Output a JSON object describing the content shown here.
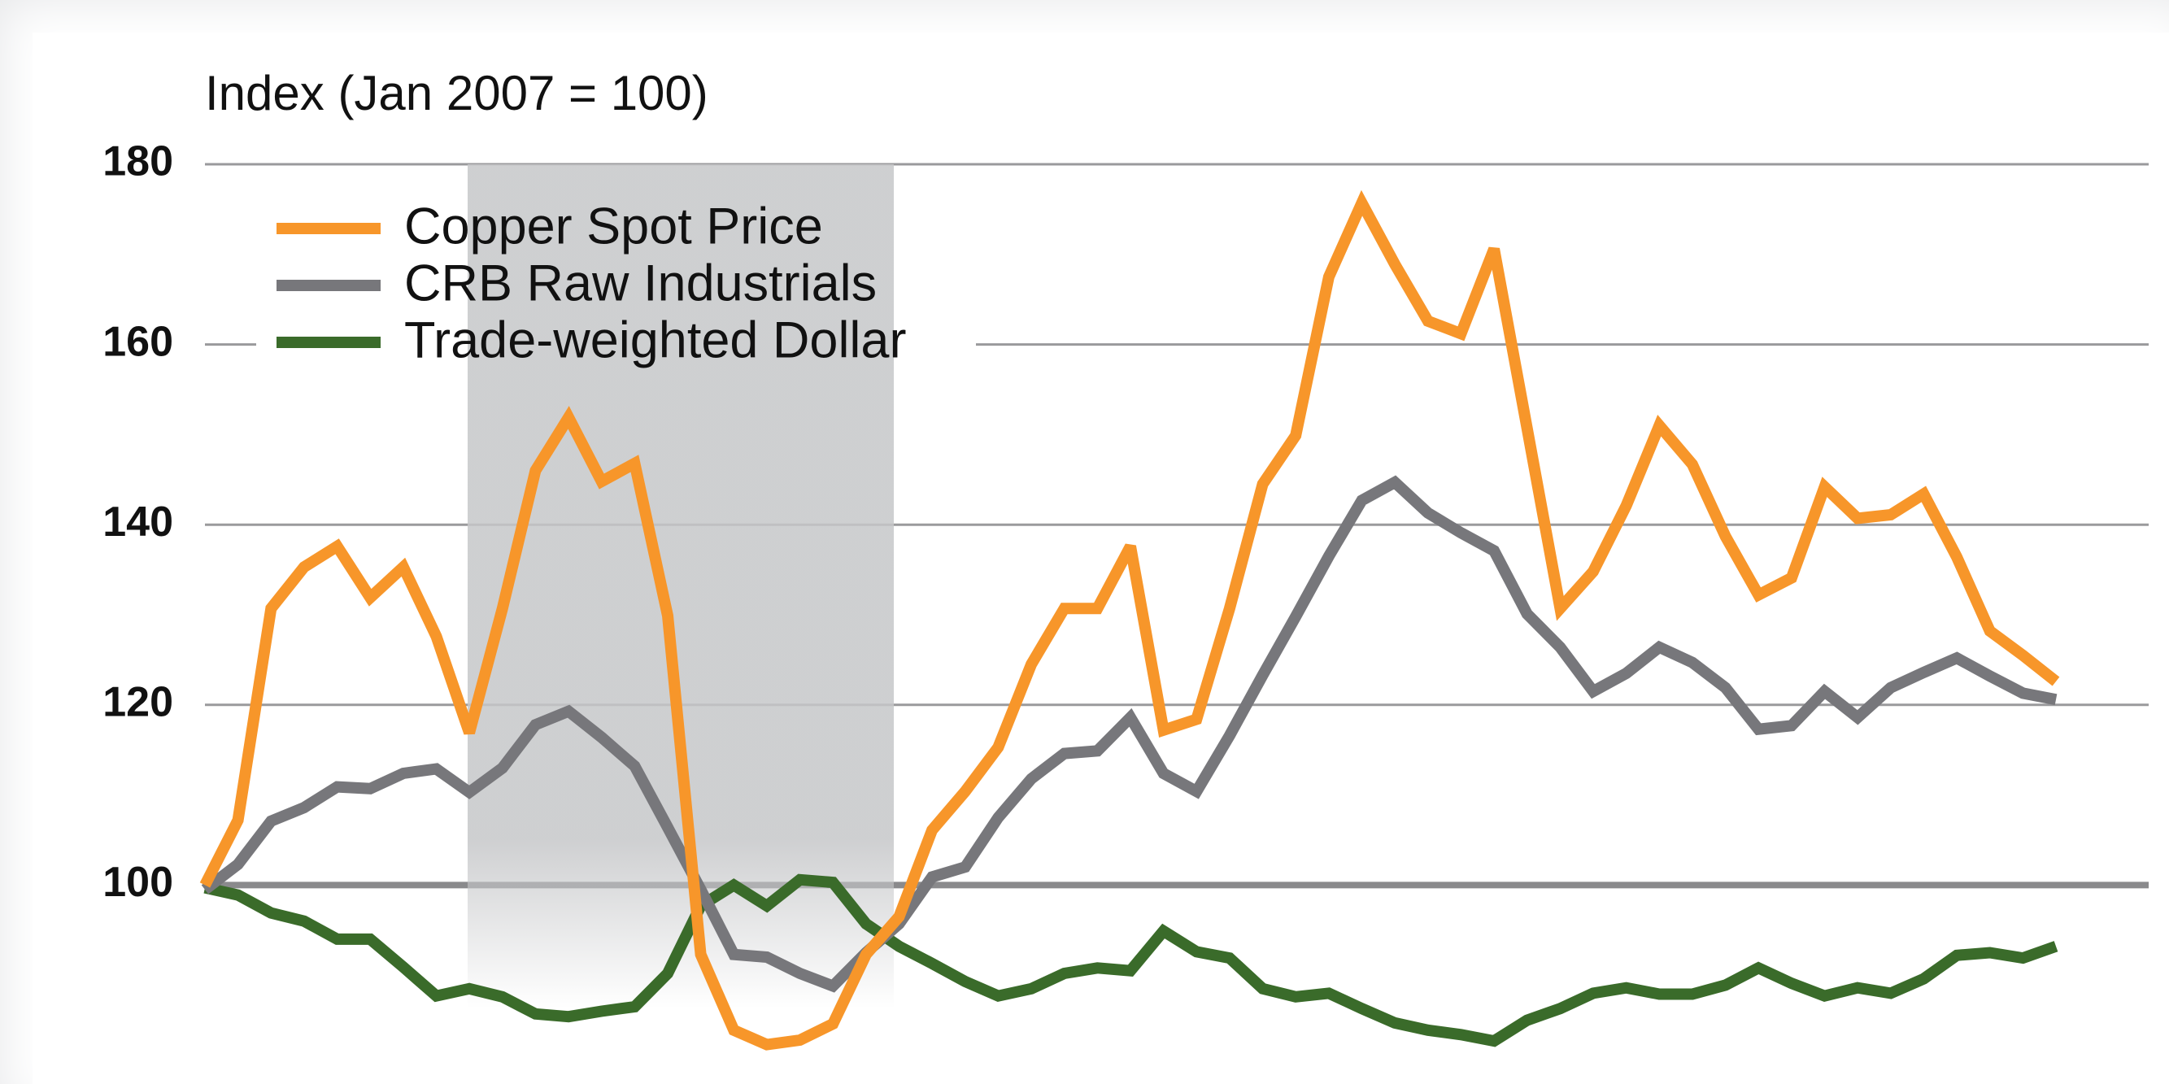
{
  "chart_data": {
    "type": "line",
    "title": "Index (Jan 2007 = 100)",
    "categories": [
      null,
      null,
      null,
      null,
      null,
      null,
      null,
      null,
      null,
      null,
      null,
      null,
      null,
      null,
      null,
      null,
      null,
      null,
      null,
      null,
      null,
      null,
      null,
      null,
      null,
      null,
      null,
      null,
      null,
      null,
      null,
      null,
      null,
      null,
      null,
      null,
      null,
      null,
      null,
      null,
      null,
      null,
      null,
      null,
      null,
      null,
      null,
      null,
      null,
      null,
      null,
      null,
      null,
      null,
      null,
      null,
      null
    ],
    "series": [
      {
        "name": "Copper Spot Price",
        "color": "#f7962a",
        "values": [
          100,
          107.2,
          130.7,
          135.3,
          137.6,
          131.9,
          135.3,
          127.6,
          116.9,
          130.7,
          146.0,
          151.9,
          144.8,
          146.8,
          129.9,
          92.3,
          83.9,
          82.3,
          82.8,
          84.6,
          92.3,
          96.5,
          106.1,
          110.4,
          115.3,
          124.5,
          130.7,
          130.7,
          137.6,
          117.2,
          118.4,
          130.7,
          144.5,
          149.9,
          167.5,
          175.7,
          168.9,
          162.6,
          161.2,
          170.6,
          150.7,
          130.7,
          134.8,
          142.1,
          151.0,
          146.7,
          138.7,
          132.2,
          134.1,
          144.2,
          140.7,
          141.1,
          143.4,
          136.4,
          128.2,
          125.5,
          122.6
        ]
      },
      {
        "name": "CRB Raw Industrials",
        "color": "#77777b",
        "values": [
          99.5,
          102.3,
          107.1,
          108.6,
          110.9,
          110.7,
          112.4,
          112.9,
          110.3,
          113.0,
          117.8,
          119.3,
          116.4,
          113.2,
          106.4,
          99.5,
          92.3,
          92.0,
          90.2,
          88.8,
          92.5,
          95.7,
          100.9,
          102.0,
          107.5,
          111.8,
          114.6,
          114.9,
          118.6,
          112.4,
          110.4,
          116.6,
          123.3,
          129.8,
          136.5,
          142.7,
          144.7,
          141.3,
          139.1,
          137.1,
          130.1,
          126.4,
          121.5,
          123.5,
          126.4,
          124.7,
          121.9,
          117.3,
          117.7,
          121.5,
          118.6,
          121.9,
          123.6,
          125.2,
          123.2,
          121.3,
          120.6
        ]
      },
      {
        "name": "Trade-weighted Dollar",
        "color": "#3a6b2a",
        "values": [
          99.7,
          98.9,
          96.9,
          96.0,
          94.0,
          94.0,
          90.9,
          87.7,
          88.5,
          87.6,
          85.7,
          85.4,
          86.0,
          86.5,
          90.2,
          97.7,
          100.0,
          97.7,
          100.6,
          100.3,
          95.7,
          93.2,
          91.3,
          89.3,
          87.7,
          88.5,
          90.2,
          90.8,
          90.5,
          94.9,
          92.6,
          91.9,
          88.5,
          87.6,
          88.0,
          86.3,
          84.7,
          83.9,
          83.4,
          82.7,
          85.0,
          86.3,
          88.0,
          88.6,
          87.9,
          87.9,
          88.9,
          90.8,
          89.1,
          87.7,
          88.6,
          88.0,
          89.6,
          92.2,
          92.5,
          91.9,
          93.2
        ]
      }
    ],
    "ylim": [
      80,
      180
    ],
    "yticks": [
      100,
      120,
      140,
      160,
      180
    ],
    "grid": true,
    "legend": "upper left"
  }
}
